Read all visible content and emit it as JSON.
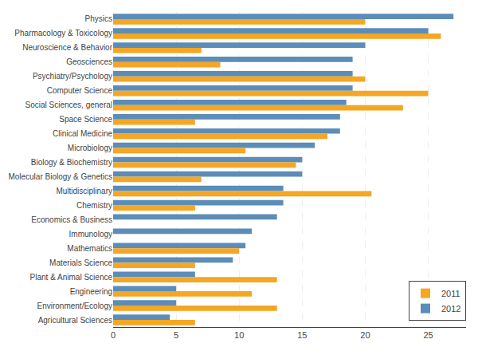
{
  "chart_data": {
    "type": "bar",
    "orientation": "horizontal",
    "categories": [
      "Physics",
      "Pharmacology & Toxicology",
      "Neuroscience & Behavior",
      "Geosciences",
      "Psychiatry/Psychology",
      "Computer Science",
      "Social Sciences, general",
      "Space Science",
      "Clinical Medicine",
      "Microbiology",
      "Biology & Biochemistry",
      "Molecular Biology & Genetics",
      "Multidisciplinary",
      "Chemistry",
      "Economics & Business",
      "Immunology",
      "Mathematics",
      "Materials Science",
      "Plant & Animal Science",
      "Engineering",
      "Environment/Ecology",
      "Agricultural Sciences"
    ],
    "series": [
      {
        "name": "2011",
        "color": "#F5A623",
        "values": [
          20,
          26,
          7,
          8.5,
          20,
          25,
          23,
          6.5,
          17,
          10.5,
          14.5,
          7,
          20.5,
          6.5,
          0,
          0,
          10,
          6.5,
          13,
          11,
          13,
          6.5
        ]
      },
      {
        "name": "2012",
        "color": "#5B8DB8",
        "values": [
          27,
          25,
          20,
          19,
          19,
          19,
          18.5,
          18,
          18,
          16,
          15,
          15,
          13.5,
          13.5,
          13,
          11,
          10.5,
          9.5,
          6.5,
          5,
          5,
          4.5
        ]
      }
    ],
    "xlim": [
      0,
      28
    ],
    "xticks": [
      0,
      5,
      10,
      15,
      20,
      25
    ],
    "grid": true,
    "legend": "lower right"
  }
}
